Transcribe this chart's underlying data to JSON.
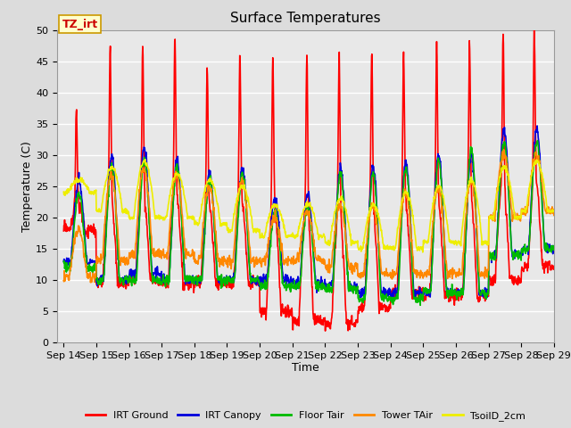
{
  "title": "Surface Temperatures",
  "xlabel": "Time",
  "ylabel": "Temperature (C)",
  "ylim": [
    0,
    50
  ],
  "xtick_labels": [
    "Sep 14",
    "Sep 15",
    "Sep 16",
    "Sep 17",
    "Sep 18",
    "Sep 19",
    "Sep 20",
    "Sep 21",
    "Sep 22",
    "Sep 23",
    "Sep 24",
    "Sep 25",
    "Sep 26",
    "Sep 27",
    "Sep 28",
    "Sep 29"
  ],
  "annotation": "TZ_irt",
  "series": {
    "IRT Ground": {
      "color": "#ff0000",
      "lw": 1.2
    },
    "IRT Canopy": {
      "color": "#0000dd",
      "lw": 1.2
    },
    "Floor Tair": {
      "color": "#00bb00",
      "lw": 1.2
    },
    "Tower TAir": {
      "color": "#ff8800",
      "lw": 1.2
    },
    "TsoilD_2cm": {
      "color": "#eeee00",
      "lw": 1.2
    }
  },
  "bg_color": "#dcdcdc",
  "plot_bg_color": "#e8e8e8",
  "grid_color": "#ffffff",
  "title_fontsize": 11,
  "tick_fontsize": 8,
  "legend_fontsize": 8,
  "axis_label_fontsize": 9
}
